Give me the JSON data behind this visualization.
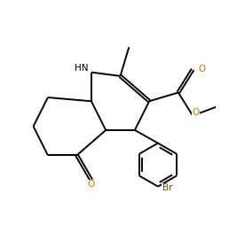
{
  "bg_color": "#ffffff",
  "bond_color": "#000000",
  "O_color": "#cc7700",
  "Br_color": "#7a4a00",
  "N_color": "#000000",
  "line_width": 1.4,
  "figsize": [
    2.58,
    2.71
  ],
  "dpi": 100,
  "xlim": [
    -3.2,
    3.8
  ],
  "ylim": [
    -3.8,
    4.5
  ]
}
